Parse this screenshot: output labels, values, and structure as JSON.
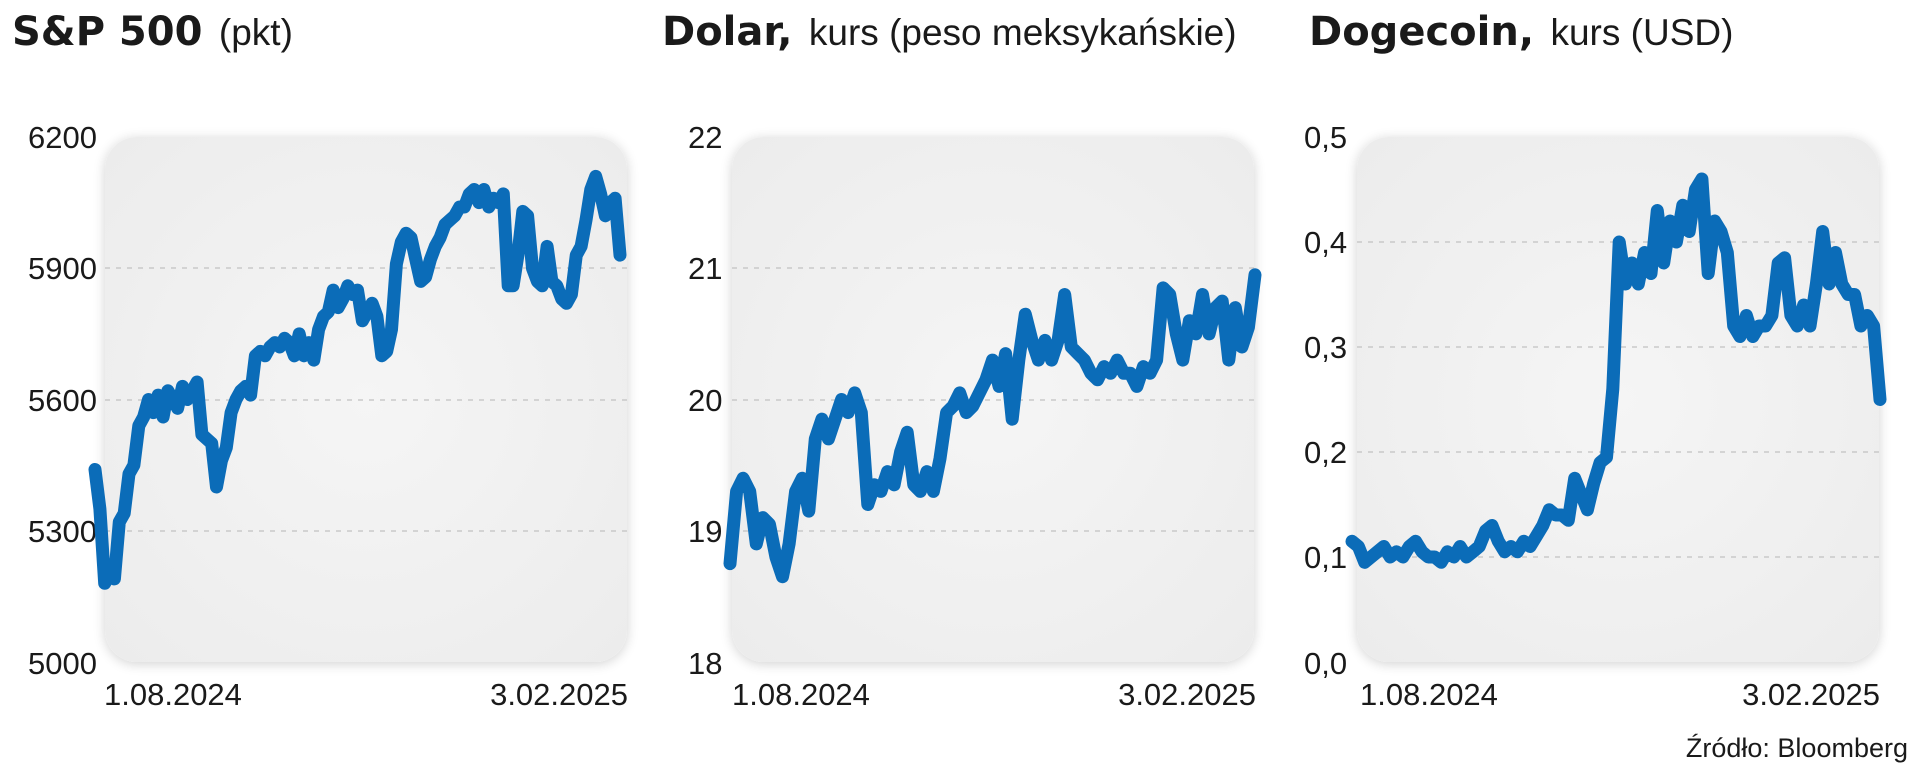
{
  "source": "Źródło: Bloomberg",
  "chart_data": [
    {
      "type": "line",
      "title_bold": "S&P 500",
      "title_rest": "(pkt)",
      "y_ticks": [
        "6200",
        "5900",
        "5600",
        "5300",
        "5000"
      ],
      "y_tick_values": [
        6200,
        5900,
        5600,
        5300,
        5000
      ],
      "ylim": [
        5000,
        6200
      ],
      "x_start_label": "1.08.2024",
      "x_end_label": "3.02.2025",
      "color": "#0b6cb8",
      "grid": true,
      "values": [
        5440,
        5350,
        5180,
        5200,
        5190,
        5320,
        5340,
        5430,
        5450,
        5540,
        5560,
        5600,
        5570,
        5610,
        5560,
        5620,
        5600,
        5580,
        5630,
        5600,
        5620,
        5640,
        5520,
        5510,
        5500,
        5400,
        5460,
        5490,
        5570,
        5600,
        5620,
        5630,
        5610,
        5700,
        5710,
        5700,
        5720,
        5730,
        5720,
        5740,
        5730,
        5700,
        5750,
        5700,
        5730,
        5690,
        5760,
        5790,
        5800,
        5850,
        5810,
        5830,
        5860,
        5840,
        5850,
        5780,
        5800,
        5820,
        5790,
        5700,
        5710,
        5760,
        5910,
        5960,
        5980,
        5970,
        5920,
        5870,
        5880,
        5920,
        5950,
        5970,
        6000,
        6010,
        6020,
        6040,
        6040,
        6070,
        6080,
        6050,
        6080,
        6040,
        6060,
        6050,
        6070,
        5860,
        5860,
        5930,
        6030,
        6020,
        5900,
        5870,
        5860,
        5950,
        5870,
        5860,
        5830,
        5820,
        5840,
        5930,
        5950,
        6010,
        6080,
        6110,
        6070,
        6020,
        6050,
        6060,
        5930
      ]
    },
    {
      "type": "line",
      "title_bold": "Dolar,",
      "title_rest": "kurs (peso meksykańskie)",
      "y_ticks": [
        "22",
        "21",
        "20",
        "19",
        "18"
      ],
      "y_tick_values": [
        22,
        21,
        20,
        19,
        18
      ],
      "ylim": [
        18,
        22
      ],
      "x_start_label": "1.08.2024",
      "x_end_label": "3.02.2025",
      "color": "#0b6cb8",
      "grid": true,
      "values": [
        18.75,
        19.3,
        19.4,
        19.3,
        18.9,
        19.1,
        19.05,
        18.8,
        18.65,
        18.9,
        19.3,
        19.4,
        19.15,
        19.7,
        19.85,
        19.7,
        19.85,
        20.0,
        19.9,
        20.05,
        19.9,
        19.2,
        19.35,
        19.3,
        19.45,
        19.35,
        19.6,
        19.75,
        19.35,
        19.3,
        19.45,
        19.3,
        19.55,
        19.9,
        19.95,
        20.05,
        19.9,
        19.95,
        20.05,
        20.15,
        20.3,
        20.1,
        20.35,
        19.85,
        20.3,
        20.65,
        20.45,
        20.3,
        20.45,
        20.3,
        20.45,
        20.8,
        20.4,
        20.35,
        20.3,
        20.2,
        20.15,
        20.25,
        20.2,
        20.3,
        20.2,
        20.2,
        20.1,
        20.25,
        20.2,
        20.3,
        20.85,
        20.8,
        20.5,
        20.3,
        20.6,
        20.5,
        20.8,
        20.5,
        20.7,
        20.75,
        20.3,
        20.7,
        20.4,
        20.55,
        20.95
      ]
    },
    {
      "type": "line",
      "title_bold": "Dogecoin,",
      "title_rest": "kurs (USD)",
      "y_ticks": [
        "0,5",
        "0,4",
        "0,3",
        "0,2",
        "0,1",
        "0,0"
      ],
      "y_tick_values": [
        0.5,
        0.4,
        0.3,
        0.2,
        0.1,
        0.0
      ],
      "ylim": [
        0.0,
        0.5
      ],
      "x_start_label": "1.08.2024",
      "x_end_label": "3.02.2025",
      "color": "#0b6cb8",
      "grid": true,
      "values": [
        0.115,
        0.11,
        0.095,
        0.1,
        0.105,
        0.11,
        0.1,
        0.105,
        0.1,
        0.11,
        0.115,
        0.105,
        0.1,
        0.1,
        0.095,
        0.105,
        0.1,
        0.11,
        0.1,
        0.105,
        0.11,
        0.125,
        0.13,
        0.115,
        0.105,
        0.11,
        0.105,
        0.115,
        0.11,
        0.12,
        0.13,
        0.145,
        0.14,
        0.14,
        0.135,
        0.175,
        0.16,
        0.145,
        0.17,
        0.19,
        0.195,
        0.26,
        0.4,
        0.36,
        0.38,
        0.36,
        0.39,
        0.37,
        0.43,
        0.38,
        0.42,
        0.4,
        0.435,
        0.41,
        0.45,
        0.46,
        0.37,
        0.42,
        0.41,
        0.39,
        0.32,
        0.31,
        0.33,
        0.31,
        0.32,
        0.32,
        0.33,
        0.38,
        0.385,
        0.33,
        0.32,
        0.34,
        0.32,
        0.36,
        0.41,
        0.36,
        0.39,
        0.36,
        0.35,
        0.35,
        0.32,
        0.33,
        0.32,
        0.25
      ]
    }
  ]
}
